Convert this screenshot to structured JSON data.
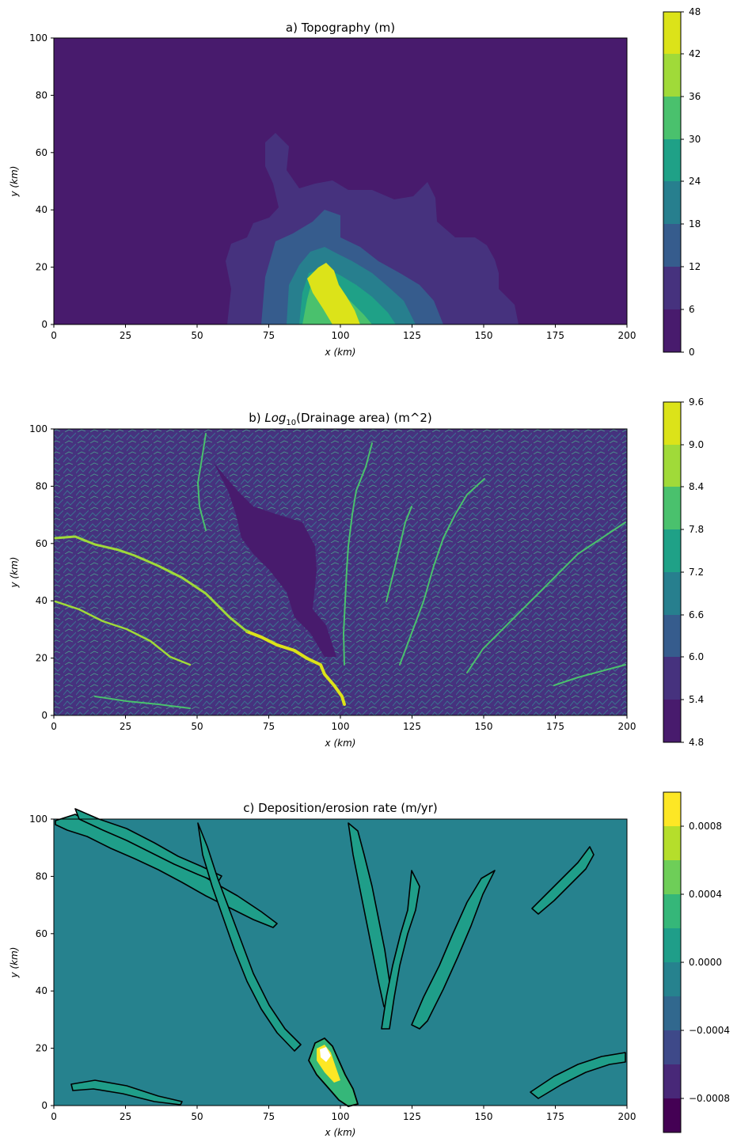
{
  "chart_data": [
    {
      "type": "heatmap",
      "title": "a) Topography (m)",
      "xlabel": "x (km)",
      "ylabel": "y (km)",
      "xlim": [
        0,
        200
      ],
      "ylim": [
        0,
        100
      ],
      "xticks": [
        "0",
        "25",
        "50",
        "75",
        "100",
        "125",
        "150",
        "175",
        "200"
      ],
      "yticks": [
        "0",
        "20",
        "40",
        "60",
        "80",
        "100"
      ],
      "colorbar": {
        "levels": [
          "0",
          "6",
          "12",
          "18",
          "24",
          "30",
          "36",
          "42",
          "48"
        ],
        "range": [
          0,
          48
        ],
        "colors": [
          "#481b6d",
          "#46327e",
          "#365c8d",
          "#277f8e",
          "#1fa187",
          "#4ac16d",
          "#a0da39",
          "#dce319"
        ]
      },
      "features": {
        "background_value": 3,
        "peak_region_value": 46,
        "peak_region_center_km": [
          96,
          12
        ]
      }
    },
    {
      "type": "heatmap",
      "title": "b) Log10(Drainage area) (m^2)",
      "title_prefix": "b) ",
      "title_log": "Log",
      "title_sub": "10",
      "title_suffix": "(Drainage area) (m^2)",
      "xlabel": "x (km)",
      "ylabel": "y (km)",
      "xlim": [
        0,
        200
      ],
      "ylim": [
        0,
        100
      ],
      "xticks": [
        "0",
        "25",
        "50",
        "75",
        "100",
        "125",
        "150",
        "175",
        "200"
      ],
      "yticks": [
        "0",
        "20",
        "40",
        "60",
        "80",
        "100"
      ],
      "colorbar": {
        "levels": [
          "4.8",
          "5.4",
          "6.0",
          "6.6",
          "7.2",
          "7.8",
          "8.4",
          "9.0",
          "9.6"
        ],
        "range": [
          4.8,
          9.6
        ],
        "colors": [
          "#481b6d",
          "#46327e",
          "#365c8d",
          "#277f8e",
          "#1fa187",
          "#4ac16d",
          "#a0da39",
          "#dce319"
        ]
      },
      "features": {
        "background_value": 5.7,
        "main_channel_value": 9.3
      }
    },
    {
      "type": "heatmap",
      "title": "c) Deposition/erosion rate (m/yr)",
      "xlabel": "x (km)",
      "ylabel": "y (km)",
      "xlim": [
        0,
        200
      ],
      "ylim": [
        0,
        100
      ],
      "xticks": [
        "0",
        "25",
        "50",
        "75",
        "100",
        "125",
        "150",
        "175",
        "200"
      ],
      "yticks": [
        "0",
        "20",
        "40",
        "60",
        "80",
        "100"
      ],
      "colorbar": {
        "levels": [
          "−0.0008",
          "−0.0004",
          "0.0000",
          "0.0004",
          "0.0008"
        ],
        "level_values": [
          -0.0008,
          -0.0004,
          0.0,
          0.0004,
          0.0008
        ],
        "range": [
          -0.001,
          0.001
        ],
        "colors": [
          "#440154",
          "#482878",
          "#3e4989",
          "#31688e",
          "#26828e",
          "#1f9e89",
          "#35b779",
          "#6ece58",
          "#b5de2b",
          "#fde725"
        ]
      },
      "features": {
        "background_value": 0.0,
        "deposition_zones_value": 0.0003
      }
    }
  ]
}
